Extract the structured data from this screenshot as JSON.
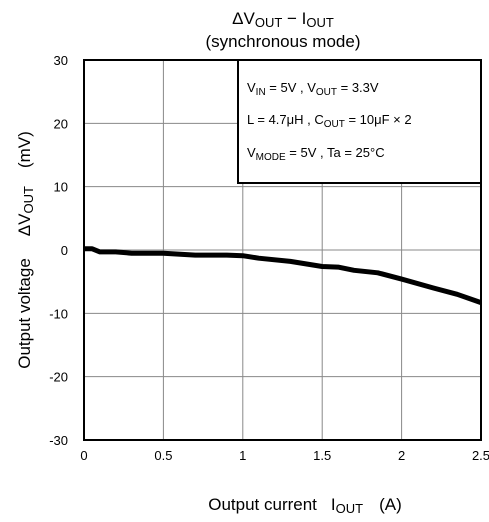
{
  "chart_data": {
    "type": "line",
    "title_main": "ΔV",
    "title_main_sub": "OUT",
    "title_dash": " − I",
    "title_dash_sub": "OUT",
    "subtitle": "(synchronous mode)",
    "xlabel": "Output current",
    "xlabel_sym": "I",
    "xlabel_sub": "OUT",
    "xlabel_unit": "(A)",
    "ylabel": "Output voltage",
    "ylabel_sym": "ΔV",
    "ylabel_sub": "OUT",
    "ylabel_unit": "(mV)",
    "xlim": [
      0,
      2.5
    ],
    "ylim": [
      -30,
      30
    ],
    "xticks": [
      "0",
      "0.5",
      "1",
      "1.5",
      "2",
      "2.5"
    ],
    "xtick_values": [
      0,
      0.5,
      1,
      1.5,
      2,
      2.5
    ],
    "yticks": [
      "30",
      "20",
      "10",
      "0",
      "-10",
      "-20",
      "-30"
    ],
    "ytick_values": [
      30,
      20,
      10,
      0,
      -10,
      -20,
      -30
    ],
    "grid": true,
    "legend_placement": "top-right",
    "conditions": {
      "line1": {
        "a": "V",
        "a_sub": "IN",
        "b": " = 5V , V",
        "b_sub": "OUT",
        "c": " = 3.3V"
      },
      "line2": {
        "a": "L = 4.7μH , C",
        "a_sub": "OUT",
        "b": " = 10μF × 2"
      },
      "line3": {
        "a": "V",
        "a_sub": "MODE",
        "b": " = 5V , Ta = 25°C"
      }
    },
    "series": [
      {
        "x": [
          0,
          0.05,
          0.1,
          0.2,
          0.3,
          0.5,
          0.7,
          0.9,
          1.0,
          1.1,
          1.3,
          1.5,
          1.6,
          1.7,
          1.85,
          2.0,
          2.2,
          2.35,
          2.5
        ],
        "y": [
          0.2,
          0.2,
          -0.3,
          -0.3,
          -0.5,
          -0.5,
          -0.8,
          -0.8,
          -0.9,
          -1.3,
          -1.8,
          -2.6,
          -2.7,
          -3.2,
          -3.6,
          -4.6,
          -6.0,
          -7.0,
          -8.3
        ]
      }
    ],
    "line_color": "#000000"
  }
}
